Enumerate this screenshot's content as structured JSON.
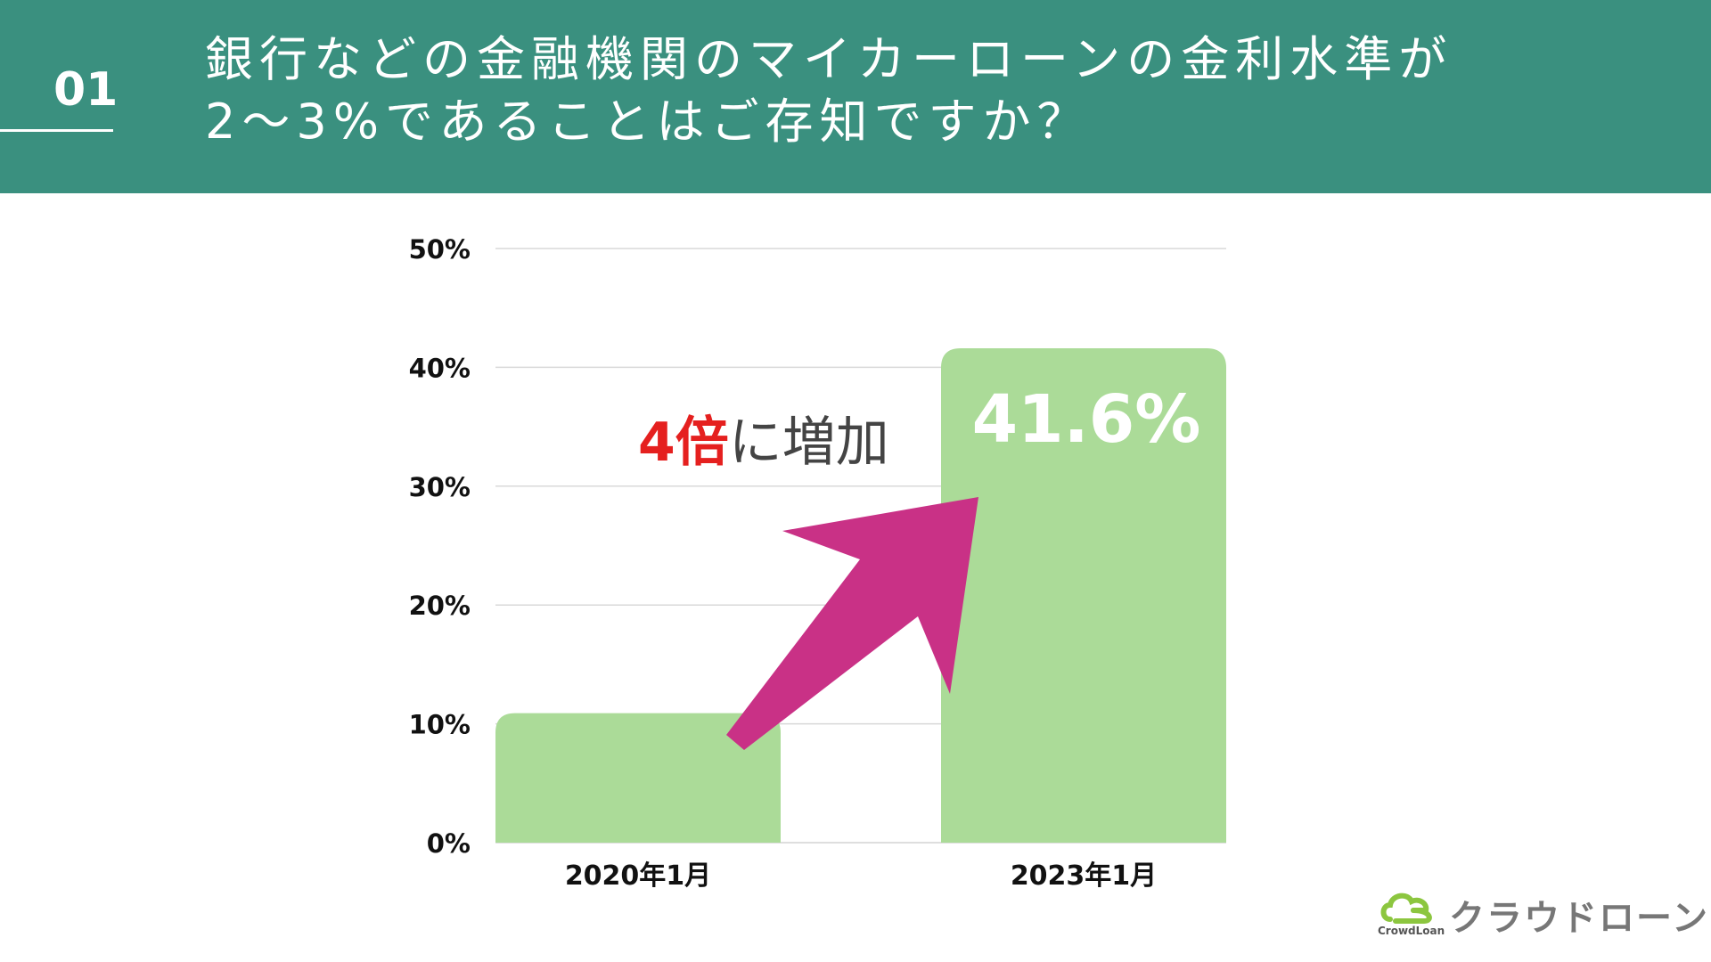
{
  "header": {
    "number": "01",
    "title_line1": "銀行などの金融機関のマイカーローンの金利水準が",
    "title_line2": "2〜3%であることはご存知ですか？",
    "color": "#3a907f"
  },
  "chart_data": {
    "type": "bar",
    "title": "",
    "xlabel": "",
    "ylabel": "",
    "categories": [
      "2020年1月",
      "2023年1月"
    ],
    "values": [
      10.9,
      41.6
    ],
    "ylim": [
      0,
      50
    ],
    "yticks": [
      0,
      10,
      20,
      30,
      40,
      50
    ],
    "ytick_labels": [
      "0%",
      "10%",
      "20%",
      "30%",
      "40%",
      "50%"
    ],
    "grid": true,
    "bar_color": "#abdb98",
    "value_label": "41.6%",
    "annotation": {
      "highlight": "4倍",
      "text": "に増加",
      "highlight_color": "#e5201f",
      "arrow_color": "#c93186"
    }
  },
  "logo": {
    "name": "クラウドローン",
    "sub": "CrowdLoan",
    "icon": "cloud-icon",
    "accent": "#8cc63f"
  }
}
